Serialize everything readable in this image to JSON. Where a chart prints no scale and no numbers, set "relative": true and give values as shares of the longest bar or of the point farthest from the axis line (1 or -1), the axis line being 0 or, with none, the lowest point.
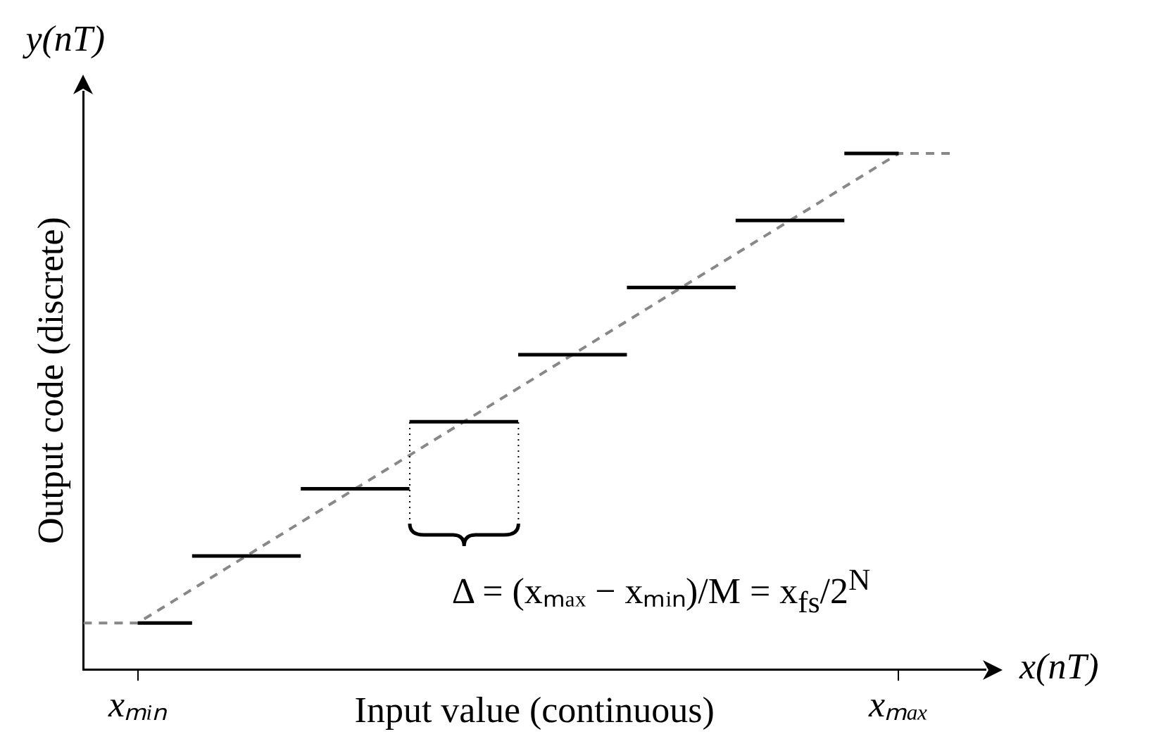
{
  "chart_data": {
    "type": "step",
    "relative": true,
    "xlabel": "Input value (continuous)",
    "ylabel": "Output code (discrete)",
    "categories": [
      null,
      "xₘᵢₙ",
      null,
      null,
      null,
      null,
      null,
      null,
      null,
      null,
      null,
      null,
      null,
      null,
      null,
      "xₘₐₓ",
      null
    ],
    "grid": false,
    "legend": false,
    "marker": "none",
    "annotations": [
      "y(nT)",
      "x(nT)",
      "Δ = (xₘₐₓ − xₘᵢₙ)/M = x$_{fs}$/2$^{N}$"
    ],
    "series": [
      {
        "line_style": "solid",
        "color": "#000000",
        "values": [
          null,
          0.09,
          null,
          0.22,
          null,
          0.35,
          null,
          0.48,
          null,
          0.61,
          null,
          0.74,
          null,
          0.87,
          null,
          1,
          null
        ]
      },
      {
        "type": "line",
        "line_style": "dashed",
        "color": "#888888",
        "values": [
          0.09,
          0.09,
          null,
          0.22,
          null,
          0.35,
          null,
          0.48,
          null,
          0.61,
          null,
          0.74,
          null,
          0.87,
          null,
          1,
          1
        ]
      }
    ]
  }
}
